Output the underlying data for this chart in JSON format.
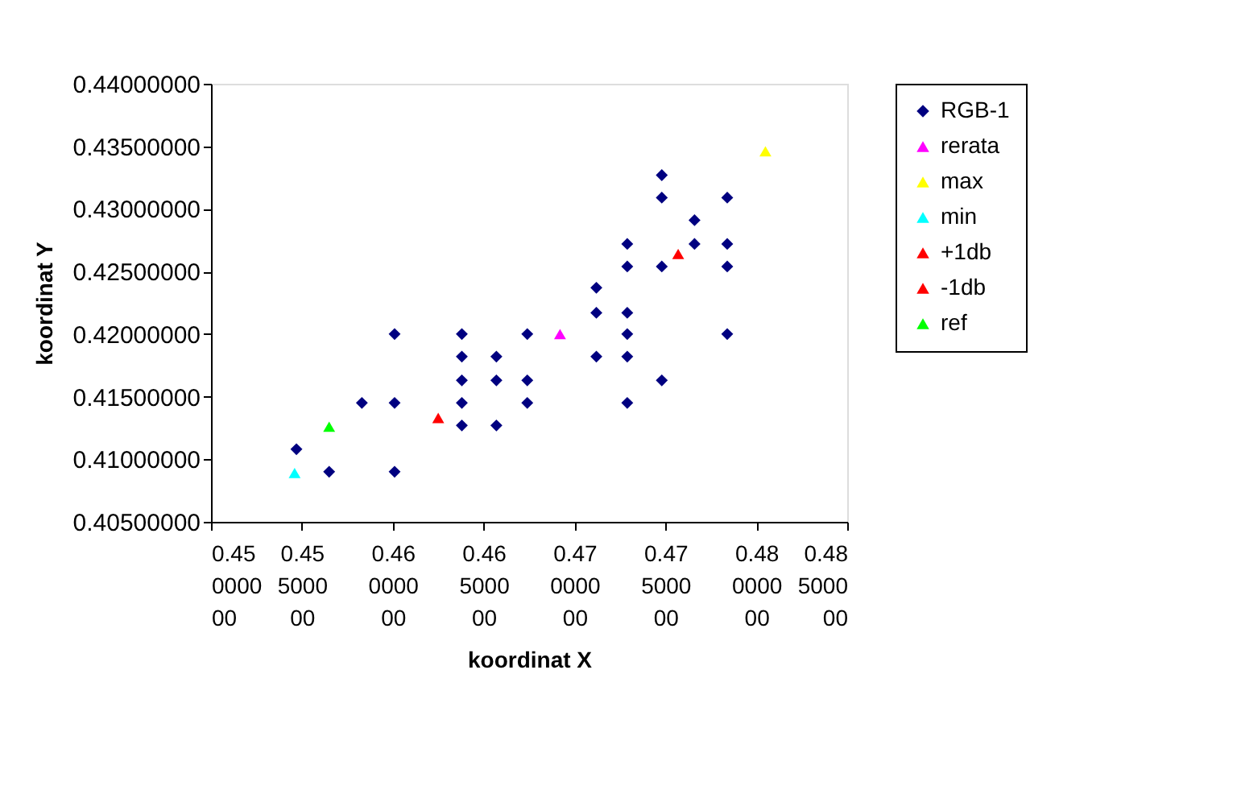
{
  "chart_data": {
    "type": "scatter",
    "xlabel": "koordinat X",
    "ylabel": "koordinat Y",
    "xlim": [
      0.45,
      0.485
    ],
    "ylim": [
      0.405,
      0.44
    ],
    "xticks": [
      {
        "value": 0.45,
        "label": "0.45000000"
      },
      {
        "value": 0.455,
        "label": "0.45500000"
      },
      {
        "value": 0.46,
        "label": "0.46000000"
      },
      {
        "value": 0.465,
        "label": "0.46500000"
      },
      {
        "value": 0.47,
        "label": "0.47000000"
      },
      {
        "value": 0.475,
        "label": "0.47500000"
      },
      {
        "value": 0.48,
        "label": "0.48000000"
      },
      {
        "value": 0.485,
        "label": "0.48500000"
      }
    ],
    "yticks": [
      {
        "value": 0.405,
        "label": "0.40500000"
      },
      {
        "value": 0.41,
        "label": "0.41000000"
      },
      {
        "value": 0.415,
        "label": "0.41500000"
      },
      {
        "value": 0.42,
        "label": "0.42000000"
      },
      {
        "value": 0.425,
        "label": "0.42500000"
      },
      {
        "value": 0.43,
        "label": "0.43000000"
      },
      {
        "value": 0.435,
        "label": "0.43500000"
      },
      {
        "value": 0.44,
        "label": "0.44000000"
      }
    ],
    "grid": false,
    "legend": "right",
    "series": [
      {
        "name": "RGB-1",
        "color": "#000080",
        "marker": "diamond",
        "x": [
          0.4547,
          0.4565,
          0.4601,
          0.4583,
          0.4601,
          0.4601,
          0.4638,
          0.4638,
          0.4638,
          0.4638,
          0.4638,
          0.4657,
          0.4657,
          0.4657,
          0.4674,
          0.4674,
          0.4674,
          0.4712,
          0.4712,
          0.4712,
          0.4729,
          0.4729,
          0.4729,
          0.4729,
          0.4729,
          0.4729,
          0.4748,
          0.4748,
          0.4748,
          0.4748,
          0.4766,
          0.4766,
          0.4784,
          0.4784,
          0.4784,
          0.4784
        ],
        "values": [
          0.4108,
          0.409,
          0.409,
          0.4145,
          0.4145,
          0.42,
          0.42,
          0.4182,
          0.4163,
          0.4145,
          0.4127,
          0.4182,
          0.4163,
          0.4127,
          0.42,
          0.4163,
          0.4145,
          0.4237,
          0.4217,
          0.4182,
          0.4272,
          0.4254,
          0.4217,
          0.42,
          0.4182,
          0.4145,
          0.4327,
          0.4309,
          0.4254,
          0.4163,
          0.4291,
          0.4272,
          0.4309,
          0.4272,
          0.4254,
          0.42
        ]
      },
      {
        "name": "rerata",
        "color": "#ff00ff",
        "marker": "triangle",
        "x": [
          0.4692
        ],
        "values": [
          0.42
        ]
      },
      {
        "name": "max",
        "color": "#ffff00",
        "marker": "triangle",
        "x": [
          0.4805
        ],
        "values": [
          0.4346
        ]
      },
      {
        "name": "min",
        "color": "#00ffff",
        "marker": "triangle",
        "x": [
          0.4546
        ],
        "values": [
          0.4089
        ]
      },
      {
        "name": "+1db",
        "color": "#ff0000",
        "marker": "triangle",
        "x": [
          0.4757
        ],
        "values": [
          0.4264
        ]
      },
      {
        "name": "-1db",
        "color": "#ff0000",
        "marker": "triangle",
        "x": [
          0.4625
        ],
        "values": [
          0.4133
        ]
      },
      {
        "name": "ref",
        "color": "#00ff00",
        "marker": "triangle",
        "x": [
          0.4565
        ],
        "values": [
          0.4126
        ]
      }
    ]
  }
}
